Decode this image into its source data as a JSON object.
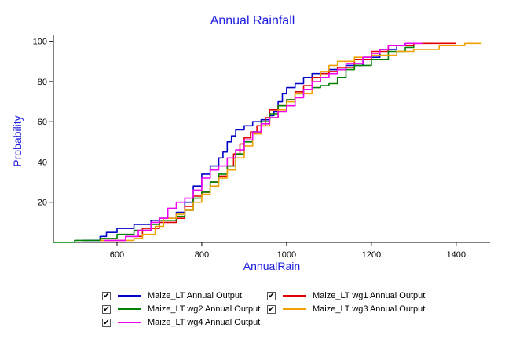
{
  "chart_data": {
    "type": "line",
    "title": "Annual Rainfall",
    "xlabel": "AnnualRain",
    "ylabel": "Probability",
    "xlim": [
      450,
      1480
    ],
    "ylim": [
      0,
      103
    ],
    "xticks": [
      600,
      800,
      1000,
      1200,
      1400
    ],
    "yticks": [
      20,
      40,
      60,
      80,
      100
    ],
    "grid": false,
    "legend_position": "bottom",
    "series": [
      {
        "name": "Maize_LT Annual Output",
        "color": "#0000c8",
        "checked": true,
        "points": [
          [
            520,
            1
          ],
          [
            560,
            3
          ],
          [
            575,
            5
          ],
          [
            600,
            7
          ],
          [
            640,
            9
          ],
          [
            680,
            11
          ],
          [
            700,
            12
          ],
          [
            740,
            15
          ],
          [
            760,
            20
          ],
          [
            780,
            28
          ],
          [
            800,
            34
          ],
          [
            820,
            38
          ],
          [
            840,
            42
          ],
          [
            850,
            45
          ],
          [
            860,
            50
          ],
          [
            870,
            53
          ],
          [
            880,
            56
          ],
          [
            900,
            58
          ],
          [
            920,
            60
          ],
          [
            940,
            61
          ],
          [
            960,
            63
          ],
          [
            970,
            65
          ],
          [
            980,
            70
          ],
          [
            990,
            74
          ],
          [
            1000,
            77
          ],
          [
            1020,
            79
          ],
          [
            1040,
            82
          ],
          [
            1060,
            84
          ],
          [
            1100,
            86
          ],
          [
            1140,
            88
          ],
          [
            1180,
            92
          ],
          [
            1220,
            96
          ],
          [
            1260,
            98
          ],
          [
            1280,
            99
          ]
        ]
      },
      {
        "name": "Maize_LT wg1 Annual Output",
        "color": "#e00000",
        "checked": true,
        "points": [
          [
            560,
            1
          ],
          [
            620,
            3
          ],
          [
            660,
            7
          ],
          [
            700,
            10
          ],
          [
            740,
            12
          ],
          [
            760,
            18
          ],
          [
            780,
            23
          ],
          [
            800,
            25
          ],
          [
            820,
            30
          ],
          [
            840,
            33
          ],
          [
            860,
            38
          ],
          [
            875,
            44
          ],
          [
            890,
            49
          ],
          [
            900,
            52
          ],
          [
            915,
            55
          ],
          [
            930,
            58
          ],
          [
            950,
            62
          ],
          [
            960,
            66
          ],
          [
            980,
            68
          ],
          [
            1000,
            71
          ],
          [
            1020,
            75
          ],
          [
            1040,
            78
          ],
          [
            1060,
            82
          ],
          [
            1080,
            84
          ],
          [
            1100,
            85
          ],
          [
            1120,
            87
          ],
          [
            1160,
            91
          ],
          [
            1200,
            95
          ],
          [
            1240,
            98
          ],
          [
            1300,
            99
          ],
          [
            1400,
            99
          ]
        ]
      },
      {
        "name": "Maize_LT wg2 Annual Output",
        "color": "#008000",
        "checked": true,
        "points": [
          [
            450,
            0
          ],
          [
            500,
            1
          ],
          [
            560,
            2
          ],
          [
            600,
            4
          ],
          [
            640,
            6
          ],
          [
            680,
            9
          ],
          [
            700,
            11
          ],
          [
            740,
            13
          ],
          [
            760,
            16
          ],
          [
            780,
            22
          ],
          [
            800,
            25
          ],
          [
            820,
            30
          ],
          [
            840,
            34
          ],
          [
            860,
            38
          ],
          [
            880,
            44
          ],
          [
            900,
            50
          ],
          [
            920,
            55
          ],
          [
            940,
            60
          ],
          [
            960,
            64
          ],
          [
            980,
            68
          ],
          [
            1000,
            71
          ],
          [
            1020,
            74
          ],
          [
            1040,
            76
          ],
          [
            1060,
            77
          ],
          [
            1080,
            78
          ],
          [
            1100,
            79
          ],
          [
            1120,
            82
          ],
          [
            1140,
            86
          ],
          [
            1160,
            88
          ],
          [
            1200,
            91
          ],
          [
            1240,
            95
          ],
          [
            1280,
            97
          ],
          [
            1300,
            98
          ]
        ]
      },
      {
        "name": "Maize_LT wg3 Annual Output",
        "color": "#f0a000",
        "checked": true,
        "points": [
          [
            560,
            1
          ],
          [
            640,
            2
          ],
          [
            660,
            4
          ],
          [
            690,
            8
          ],
          [
            710,
            12
          ],
          [
            740,
            14
          ],
          [
            760,
            16
          ],
          [
            780,
            20
          ],
          [
            800,
            24
          ],
          [
            820,
            28
          ],
          [
            840,
            32
          ],
          [
            860,
            36
          ],
          [
            880,
            42
          ],
          [
            900,
            48
          ],
          [
            920,
            54
          ],
          [
            940,
            58
          ],
          [
            960,
            62
          ],
          [
            980,
            66
          ],
          [
            1000,
            70
          ],
          [
            1020,
            74
          ],
          [
            1060,
            80
          ],
          [
            1080,
            85
          ],
          [
            1100,
            88
          ],
          [
            1120,
            90
          ],
          [
            1160,
            92
          ],
          [
            1200,
            93
          ],
          [
            1260,
            95
          ],
          [
            1300,
            96
          ],
          [
            1360,
            98
          ],
          [
            1420,
            99
          ],
          [
            1460,
            99
          ]
        ]
      },
      {
        "name": "Maize_LT wg4 Annual Output",
        "color": "#f000f0",
        "checked": true,
        "points": [
          [
            570,
            1
          ],
          [
            620,
            3
          ],
          [
            650,
            6
          ],
          [
            680,
            10
          ],
          [
            700,
            12
          ],
          [
            720,
            17
          ],
          [
            740,
            20
          ],
          [
            760,
            22
          ],
          [
            780,
            26
          ],
          [
            800,
            32
          ],
          [
            820,
            36
          ],
          [
            840,
            38
          ],
          [
            860,
            42
          ],
          [
            880,
            46
          ],
          [
            900,
            51
          ],
          [
            920,
            55
          ],
          [
            940,
            59
          ],
          [
            960,
            62
          ],
          [
            980,
            65
          ],
          [
            1000,
            68
          ],
          [
            1020,
            72
          ],
          [
            1040,
            76
          ],
          [
            1060,
            80
          ],
          [
            1080,
            82
          ],
          [
            1100,
            84
          ],
          [
            1120,
            86
          ],
          [
            1140,
            89
          ],
          [
            1180,
            92
          ],
          [
            1200,
            94
          ],
          [
            1220,
            96
          ],
          [
            1240,
            98
          ],
          [
            1280,
            99
          ],
          [
            1320,
            99
          ]
        ]
      }
    ]
  },
  "legend": {
    "items": [
      {
        "label": "Maize_LT Annual Output",
        "color": "#0000c8",
        "check": "✔"
      },
      {
        "label": "Maize_LT wg1 Annual Output",
        "color": "#e00000",
        "check": "✔"
      },
      {
        "label": "Maize_LT wg2 Annual Output",
        "color": "#008000",
        "check": "✔"
      },
      {
        "label": "Maize_LT wg3 Annual Output",
        "color": "#f0a000",
        "check": "✔"
      },
      {
        "label": "Maize_LT wg4 Annual Output",
        "color": "#f000f0",
        "check": "✔"
      }
    ]
  }
}
